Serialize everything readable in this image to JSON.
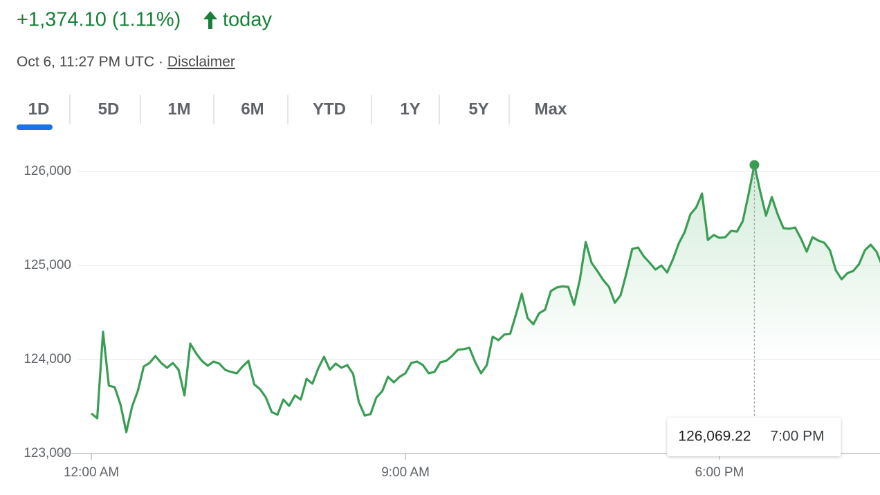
{
  "header": {
    "change": "+1,374.10 (1.11%)",
    "period": "today",
    "timestamp": "Oct 6, 11:27 PM UTC",
    "separator": "·",
    "disclaimer": "Disclaimer"
  },
  "tabs": {
    "items": [
      "1D",
      "5D",
      "1M",
      "6M",
      "YTD",
      "1Y",
      "5Y",
      "Max"
    ],
    "selected": "1D"
  },
  "chart_data": {
    "type": "line",
    "color": "#3a9d54",
    "x": [
      0,
      10,
      20,
      30,
      40,
      50,
      60,
      70,
      80,
      90,
      100,
      110,
      120,
      130,
      140,
      150,
      160,
      170,
      180,
      190,
      200,
      210,
      220,
      230,
      240,
      250,
      260,
      270,
      280,
      290,
      300,
      310,
      320,
      330,
      340,
      350,
      360,
      370,
      380,
      390,
      400,
      410,
      420,
      430,
      440,
      450,
      460,
      470,
      480,
      490,
      500,
      510,
      520,
      530,
      540,
      550,
      560,
      570,
      580,
      590,
      600,
      610,
      620,
      630,
      640,
      650,
      660,
      670,
      680,
      690,
      700,
      710,
      720,
      730,
      740,
      750,
      760,
      770,
      780,
      790,
      800,
      810,
      820,
      830,
      840,
      850,
      860,
      870,
      880,
      890,
      900,
      910,
      920,
      930,
      940,
      950,
      960,
      970,
      980,
      990,
      1000,
      1010,
      1020,
      1030,
      1040,
      1050,
      1060,
      1070,
      1080,
      1090,
      1100,
      1110,
      1120,
      1130,
      1140,
      1150,
      1160,
      1170,
      1180,
      1190,
      1200,
      1210,
      1220,
      1230,
      1240,
      1250,
      1260,
      1270,
      1280,
      1290,
      1300,
      1310,
      1320,
      1330,
      1340,
      1350,
      1360
    ],
    "values": [
      123426,
      123375,
      124294,
      123721,
      123706,
      123522,
      123228,
      123500,
      123669,
      123926,
      123963,
      124037,
      123963,
      123912,
      123963,
      123890,
      123618,
      124169,
      124066,
      123985,
      123934,
      123978,
      123956,
      123890,
      123868,
      123853,
      123926,
      123985,
      123735,
      123684,
      123596,
      123441,
      123412,
      123574,
      123507,
      123618,
      123574,
      123794,
      123743,
      123904,
      124029,
      123890,
      123956,
      123912,
      123941,
      123846,
      123544,
      123404,
      123419,
      123596,
      123662,
      123816,
      123757,
      123816,
      123853,
      123963,
      123978,
      123941,
      123853,
      123868,
      123971,
      123985,
      124037,
      124103,
      124110,
      124125,
      123971,
      123853,
      123941,
      124243,
      124206,
      124265,
      124272,
      124478,
      124699,
      124441,
      124375,
      124493,
      124529,
      124728,
      124765,
      124779,
      124772,
      124581,
      124853,
      125250,
      125029,
      124941,
      124846,
      124772,
      124603,
      124684,
      124919,
      125176,
      125191,
      125096,
      125029,
      124956,
      125000,
      124926,
      125066,
      125235,
      125353,
      125544,
      125618,
      125765,
      125272,
      125324,
      125294,
      125301,
      125368,
      125360,
      125471,
      125757,
      126069.22,
      125787,
      125529,
      125728,
      125544,
      125397,
      125390,
      125404,
      125287,
      125147,
      125301,
      125265,
      125243,
      125162,
      124949,
      124853,
      124919,
      124941,
      125015,
      125162,
      125221,
      125147,
      124993
    ],
    "xlim": [
      -62,
      1356
    ],
    "xticks": [
      {
        "value": 0,
        "label": "12:00 AM"
      },
      {
        "value": 540,
        "label": "9:00 AM"
      },
      {
        "value": 1080,
        "label": "6:00 PM"
      }
    ],
    "ylim": [
      123000,
      126300
    ],
    "yticks": [
      {
        "value": 123000,
        "label": "123,000"
      },
      {
        "value": 124000,
        "label": "124,000"
      },
      {
        "value": 125000,
        "label": "125,000"
      },
      {
        "value": 126000,
        "label": "126,000"
      }
    ],
    "grid": true,
    "tooltip": {
      "x": 1140,
      "value": 126069.22,
      "label": "126,069.22",
      "time": "7:00 PM"
    }
  }
}
